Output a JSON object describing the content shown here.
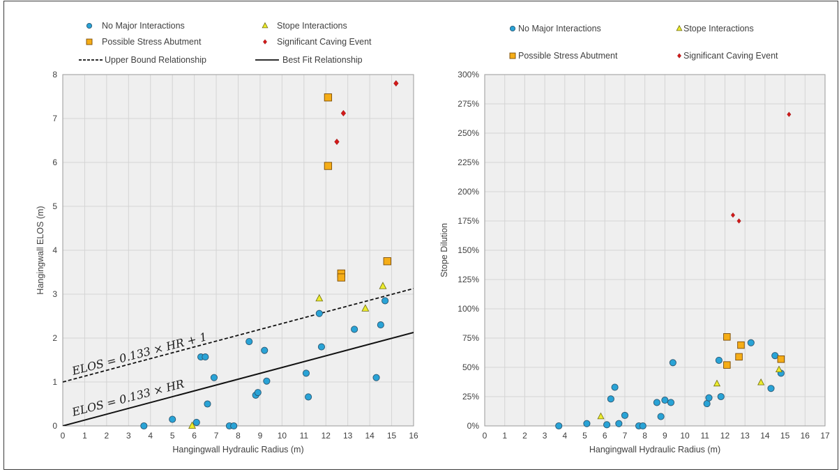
{
  "colors": {
    "no_major": "#29a3d6",
    "stress": "#f5ad17",
    "stope": "#ecec2c",
    "caving": "#d31919",
    "plot_bg": "#efefef",
    "grid": "#d4d4d4",
    "axis_text": "#404040"
  },
  "chart_data": [
    {
      "type": "scatter",
      "xlabel": "Hangingwall  Hydraulic Radius (m)",
      "ylabel": "Hangingwall ELOS (m)",
      "xlim": [
        0,
        16
      ],
      "ylim": [
        0,
        8
      ],
      "xticks": [
        0,
        1,
        2,
        3,
        4,
        5,
        6,
        7,
        8,
        9,
        10,
        11,
        12,
        13,
        14,
        15,
        16
      ],
      "yticks": [
        0,
        1,
        2,
        3,
        4,
        5,
        6,
        7,
        8
      ],
      "ytick_labels": [
        "0",
        "1",
        "2",
        "3",
        "4",
        "5",
        "6",
        "7",
        "8"
      ],
      "grid": true,
      "legend_position": "top",
      "legend": [
        {
          "label": "No Major Interactions",
          "marker": "circle",
          "series": "no_major"
        },
        {
          "label": "Stope Interactions",
          "marker": "triangle",
          "series": "stope"
        },
        {
          "label": "Possible Stress Abutment",
          "marker": "square",
          "series": "stress"
        },
        {
          "label": "Significant Caving Event",
          "marker": "diamond",
          "series": "caving"
        },
        {
          "label": "Upper Bound Relationship",
          "marker": "dashed-line"
        },
        {
          "label": "Best Fit Relationship",
          "marker": "solid-line"
        }
      ],
      "series": [
        {
          "key": "no_major",
          "marker": "circle",
          "points": [
            [
              3.7,
              0.0
            ],
            [
              5.0,
              0.15
            ],
            [
              6.1,
              0.08
            ],
            [
              6.6,
              0.5
            ],
            [
              6.3,
              1.57
            ],
            [
              6.5,
              1.57
            ],
            [
              6.9,
              1.1
            ],
            [
              7.6,
              0.0
            ],
            [
              7.8,
              0.0
            ],
            [
              8.5,
              1.92
            ],
            [
              8.8,
              0.7
            ],
            [
              8.9,
              0.76
            ],
            [
              9.2,
              1.72
            ],
            [
              9.3,
              1.02
            ],
            [
              11.1,
              1.2
            ],
            [
              11.2,
              0.66
            ],
            [
              11.7,
              2.56
            ],
            [
              11.8,
              1.8
            ],
            [
              13.3,
              2.2
            ],
            [
              14.3,
              1.1
            ],
            [
              14.5,
              2.3
            ],
            [
              14.7,
              2.85
            ]
          ]
        },
        {
          "key": "stope",
          "marker": "triangle",
          "points": [
            [
              5.9,
              0.0
            ],
            [
              11.7,
              2.9
            ],
            [
              13.8,
              2.67
            ],
            [
              14.6,
              3.18
            ]
          ]
        },
        {
          "key": "stress",
          "marker": "square",
          "points": [
            [
              12.1,
              7.48
            ],
            [
              12.1,
              5.92
            ],
            [
              12.7,
              3.47
            ],
            [
              12.7,
              3.38
            ],
            [
              14.8,
              3.75
            ]
          ]
        },
        {
          "key": "caving",
          "marker": "diamond",
          "points": [
            [
              12.5,
              6.47
            ],
            [
              12.8,
              7.12
            ],
            [
              15.2,
              7.8
            ]
          ]
        }
      ],
      "lines": [
        {
          "name": "Upper Bound Relationship",
          "style": "dashed",
          "slope": 0.133,
          "intercept": 1,
          "label": "ELOS = 0.133 × HR + 1"
        },
        {
          "name": "Best Fit Relationship",
          "style": "solid",
          "slope": 0.133,
          "intercept": 0,
          "label": "ELOS = 0.133 × HR"
        }
      ]
    },
    {
      "type": "scatter",
      "xlabel": "Hangingwall  Hydraulic Radius (m)",
      "ylabel": "Stope Dilution",
      "xlim": [
        0,
        17
      ],
      "ylim": [
        0,
        300
      ],
      "xticks": [
        0,
        1,
        2,
        3,
        4,
        5,
        6,
        7,
        8,
        9,
        10,
        11,
        12,
        13,
        14,
        15,
        16,
        17
      ],
      "yticks": [
        0,
        25,
        50,
        75,
        100,
        125,
        150,
        175,
        200,
        225,
        250,
        275,
        300
      ],
      "ytick_labels": [
        "0%",
        "25%",
        "50%",
        "75%",
        "100%",
        "125%",
        "150%",
        "175%",
        "200%",
        "225%",
        "250%",
        "275%",
        "300%"
      ],
      "grid": true,
      "legend_position": "top",
      "legend": [
        {
          "label": "No Major Interactions",
          "marker": "circle",
          "series": "no_major"
        },
        {
          "label": "Stope Interactions",
          "marker": "triangle",
          "series": "stope"
        },
        {
          "label": "Possible Stress Abutment",
          "marker": "square",
          "series": "stress"
        },
        {
          "label": "Significant Caving Event",
          "marker": "diamond",
          "series": "caving"
        }
      ],
      "series": [
        {
          "key": "no_major",
          "marker": "circle",
          "points": [
            [
              3.7,
              0
            ],
            [
              5.1,
              2
            ],
            [
              6.1,
              1
            ],
            [
              6.7,
              2
            ],
            [
              6.3,
              23
            ],
            [
              6.5,
              33
            ],
            [
              7.0,
              9
            ],
            [
              7.7,
              0
            ],
            [
              7.9,
              0
            ],
            [
              8.6,
              20
            ],
            [
              8.8,
              8
            ],
            [
              9.0,
              22
            ],
            [
              9.3,
              20
            ],
            [
              9.4,
              54
            ],
            [
              11.1,
              19
            ],
            [
              11.2,
              24
            ],
            [
              11.7,
              56
            ],
            [
              11.8,
              25
            ],
            [
              13.3,
              71
            ],
            [
              14.3,
              32
            ],
            [
              14.5,
              60
            ],
            [
              14.8,
              45
            ]
          ]
        },
        {
          "key": "stope",
          "marker": "triangle",
          "points": [
            [
              5.8,
              8
            ],
            [
              11.6,
              36
            ],
            [
              13.8,
              37
            ],
            [
              14.7,
              48
            ]
          ]
        },
        {
          "key": "stress",
          "marker": "square",
          "points": [
            [
              12.1,
              76
            ],
            [
              12.1,
              52
            ],
            [
              12.7,
              59
            ],
            [
              12.8,
              69
            ],
            [
              14.8,
              57
            ]
          ]
        },
        {
          "key": "caving",
          "marker": "diamond",
          "points": [
            [
              12.4,
              180
            ],
            [
              12.7,
              175
            ],
            [
              15.2,
              266
            ]
          ]
        }
      ]
    }
  ]
}
